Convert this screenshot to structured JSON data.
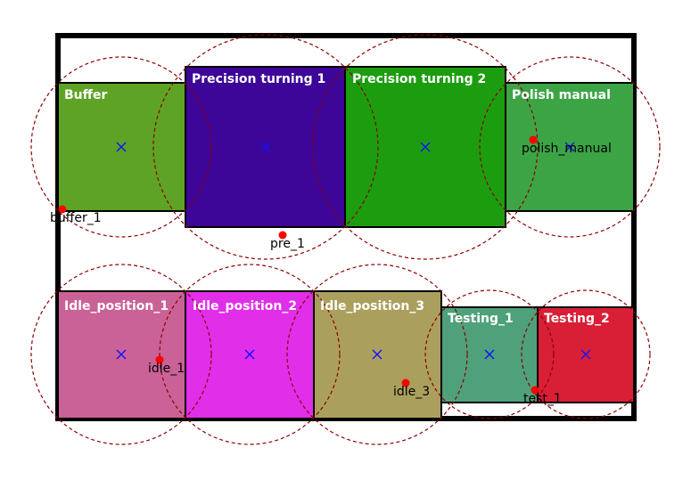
{
  "layout_diagram": {
    "zones": [
      {
        "name": "Buffer",
        "color": "#5ea325"
      },
      {
        "name": "Precision turning 1",
        "color": "#3d0698"
      },
      {
        "name": "Precision turning 2",
        "color": "#1c9d0f"
      },
      {
        "name": "Polish manual",
        "color": "#3da446"
      },
      {
        "name": "Idle_position_1",
        "color": "#ca6297"
      },
      {
        "name": "Idle_position_2",
        "color": "#e12ee9"
      },
      {
        "name": "Idle_position_3",
        "color": "#ab9f5d"
      },
      {
        "name": "Testing_1",
        "color": "#4ea17a"
      },
      {
        "name": "Testing_2",
        "color": "#d91f35"
      }
    ],
    "points": [
      {
        "label": "buffer_1"
      },
      {
        "label": "pre_1"
      },
      {
        "label": "polish_manual"
      },
      {
        "label": "idle_1"
      },
      {
        "label": "idle_3"
      },
      {
        "label": "test_1"
      }
    ],
    "colors": {
      "boundary": "#000000",
      "circle": "#8b0000",
      "center_marker": "#1010ff",
      "point_marker": "#ff0000"
    }
  }
}
